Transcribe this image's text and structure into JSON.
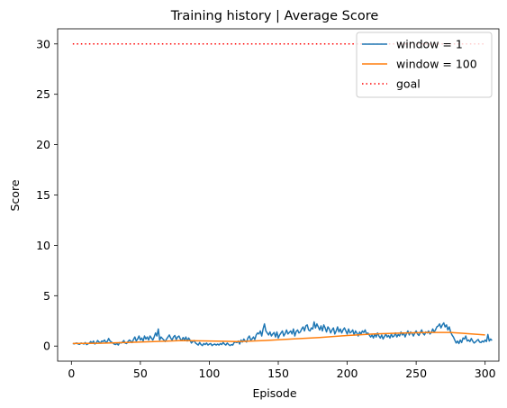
{
  "chart_data": {
    "type": "line",
    "title": "Training history | Average Score",
    "xlabel": "Episode",
    "ylabel": "Score",
    "xlim": [
      -10,
      310
    ],
    "ylim": [
      -1.5,
      31.5
    ],
    "xticks": [
      0,
      50,
      100,
      150,
      200,
      250,
      300
    ],
    "yticks": [
      0,
      5,
      10,
      15,
      20,
      25,
      30
    ],
    "grid": false,
    "legend_position": "top-right",
    "series": [
      {
        "name": "window = 1",
        "color": "#1f77b4",
        "style": "solid",
        "x_start": 1,
        "x_step": 1,
        "values": [
          0.25,
          0.22,
          0.28,
          0.3,
          0.2,
          0.18,
          0.3,
          0.26,
          0.2,
          0.35,
          0.15,
          0.22,
          0.3,
          0.45,
          0.3,
          0.5,
          0.2,
          0.32,
          0.55,
          0.4,
          0.3,
          0.5,
          0.45,
          0.6,
          0.35,
          0.45,
          0.75,
          0.5,
          0.4,
          0.3,
          0.2,
          0.15,
          0.25,
          0.1,
          0.35,
          0.3,
          0.4,
          0.55,
          0.3,
          0.25,
          0.45,
          0.6,
          0.5,
          0.35,
          0.65,
          0.9,
          0.5,
          0.7,
          1.0,
          0.6,
          0.8,
          0.5,
          1.0,
          0.7,
          0.9,
          0.6,
          1.0,
          0.8,
          0.6,
          0.9,
          1.3,
          1.0,
          1.7,
          0.6,
          0.9,
          0.75,
          0.6,
          0.45,
          0.7,
          0.9,
          1.1,
          0.8,
          0.6,
          0.9,
          1.05,
          0.65,
          0.9,
          1.0,
          0.7,
          0.55,
          0.85,
          0.6,
          0.9,
          0.5,
          0.8,
          0.6,
          0.3,
          0.45,
          0.55,
          0.3,
          0.2,
          0.1,
          0.35,
          0.15,
          0.05,
          0.25,
          0.15,
          0.3,
          0.1,
          0.2,
          0.25,
          0.05,
          0.15,
          0.2,
          0.1,
          0.2,
          0.1,
          0.25,
          0.15,
          0.35,
          0.2,
          0.1,
          0.3,
          0.15,
          0.05,
          0.15,
          0.1,
          0.35,
          0.4,
          0.35,
          0.5,
          0.2,
          0.6,
          0.4,
          0.7,
          0.5,
          0.4,
          0.8,
          1.0,
          0.6,
          0.7,
          0.9,
          0.65,
          1.1,
          1.3,
          1.2,
          1.5,
          1.0,
          1.7,
          2.2,
          1.5,
          1.3,
          1.1,
          1.4,
          1.0,
          1.2,
          1.35,
          0.9,
          1.4,
          0.8,
          1.1,
          1.3,
          1.5,
          1.0,
          1.25,
          1.6,
          1.2,
          1.35,
          1.5,
          1.2,
          1.7,
          1.0,
          1.45,
          1.6,
          1.3,
          1.4,
          1.7,
          1.9,
          1.5,
          2.0,
          2.1,
          1.6,
          1.5,
          1.8,
          1.7,
          2.4,
          1.8,
          2.2,
          1.9,
          1.6,
          2.0,
          1.5,
          2.1,
          1.8,
          1.4,
          1.9,
          1.7,
          1.3,
          1.6,
          1.8,
          1.2,
          1.5,
          1.9,
          1.4,
          1.7,
          1.3,
          1.6,
          1.8,
          1.5,
          1.2,
          1.7,
          1.3,
          1.4,
          1.6,
          1.1,
          1.5,
          1.3,
          1.0,
          1.4,
          1.2,
          1.5,
          1.35,
          1.6,
          1.2,
          1.3,
          1.1,
          0.9,
          1.1,
          0.8,
          1.2,
          0.9,
          1.3,
          1.0,
          0.8,
          1.1,
          0.7,
          0.95,
          1.2,
          0.9,
          1.05,
          0.8,
          1.2,
          0.9,
          1.0,
          1.3,
          0.9,
          1.15,
          1.0,
          1.4,
          1.1,
          1.3,
          0.9,
          1.25,
          1.5,
          1.1,
          1.4,
          1.25,
          1.0,
          1.3,
          1.5,
          1.2,
          1.05,
          1.35,
          1.6,
          1.25,
          1.1,
          1.4,
          1.3,
          1.5,
          1.2,
          1.35,
          1.7,
          1.4,
          1.6,
          1.9,
          2.0,
          2.2,
          1.8,
          2.1,
          2.3,
          1.9,
          2.1,
          1.6,
          1.9,
          1.4,
          1.1,
          0.9,
          0.6,
          0.3,
          0.5,
          0.25,
          0.6,
          0.35,
          0.8,
          0.7,
          1.0,
          0.5,
          0.6,
          0.45,
          0.75,
          0.5,
          0.3,
          0.4,
          0.55,
          0.65,
          0.4,
          0.35,
          0.5,
          0.4,
          0.6,
          0.45,
          1.15,
          0.5,
          0.7,
          0.55
        ]
      },
      {
        "name": "window = 100",
        "color": "#ff7f0e",
        "style": "solid",
        "points": [
          [
            1,
            0.25
          ],
          [
            20,
            0.28
          ],
          [
            40,
            0.35
          ],
          [
            60,
            0.45
          ],
          [
            80,
            0.55
          ],
          [
            100,
            0.5
          ],
          [
            120,
            0.45
          ],
          [
            140,
            0.55
          ],
          [
            160,
            0.7
          ],
          [
            180,
            0.85
          ],
          [
            200,
            1.05
          ],
          [
            220,
            1.2
          ],
          [
            240,
            1.3
          ],
          [
            260,
            1.35
          ],
          [
            275,
            1.35
          ],
          [
            290,
            1.2
          ],
          [
            300,
            1.1
          ]
        ]
      },
      {
        "name": "goal",
        "color": "#ff0000",
        "style": "dotted",
        "points": [
          [
            1,
            30
          ],
          [
            300,
            30
          ]
        ]
      }
    ]
  }
}
